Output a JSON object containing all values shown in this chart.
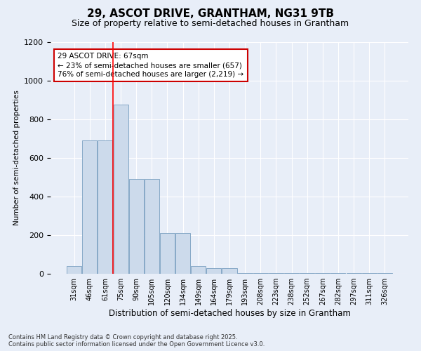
{
  "title1": "29, ASCOT DRIVE, GRANTHAM, NG31 9TB",
  "title2": "Size of property relative to semi-detached houses in Grantham",
  "xlabel": "Distribution of semi-detached houses by size in Grantham",
  "ylabel": "Number of semi-detached properties",
  "categories": [
    "31sqm",
    "46sqm",
    "61sqm",
    "75sqm",
    "90sqm",
    "105sqm",
    "120sqm",
    "134sqm",
    "149sqm",
    "164sqm",
    "179sqm",
    "193sqm",
    "208sqm",
    "223sqm",
    "238sqm",
    "252sqm",
    "267sqm",
    "282sqm",
    "297sqm",
    "311sqm",
    "326sqm"
  ],
  "values": [
    40,
    690,
    690,
    875,
    490,
    490,
    210,
    210,
    40,
    30,
    30,
    5,
    5,
    5,
    5,
    5,
    5,
    5,
    5,
    5,
    5
  ],
  "bar_color": "#ccdaeb",
  "bar_edge_color": "#7aa0c0",
  "red_line_x": 2.5,
  "annotation_text": "29 ASCOT DRIVE: 67sqm\n← 23% of semi-detached houses are smaller (657)\n76% of semi-detached houses are larger (2,219) →",
  "annotation_box_color": "#ffffff",
  "annotation_box_edge": "#cc0000",
  "ylim": [
    0,
    1200
  ],
  "yticks": [
    0,
    200,
    400,
    600,
    800,
    1000,
    1200
  ],
  "footnote1": "Contains HM Land Registry data © Crown copyright and database right 2025.",
  "footnote2": "Contains public sector information licensed under the Open Government Licence v3.0.",
  "background_color": "#e8eef8",
  "grid_color": "#ffffff",
  "title1_fontsize": 11,
  "title2_fontsize": 9
}
